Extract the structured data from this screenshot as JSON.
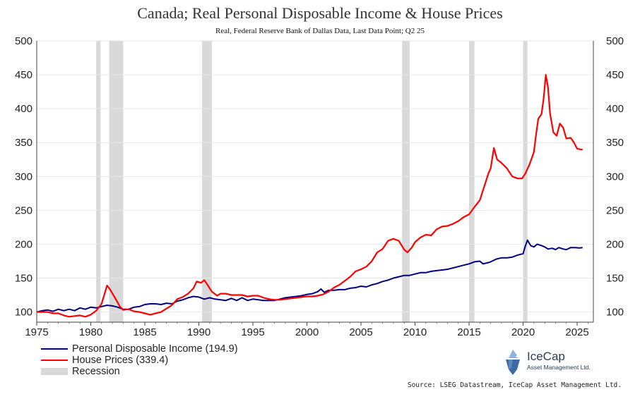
{
  "chart_data": {
    "type": "line",
    "title": "Canada; Real Personal Disposable Income & House Prices",
    "subtitle": "Real, Federal Reserve Bank of Dallas Data, Last Data Point; Q2 25",
    "xlim": [
      1975,
      2026.5
    ],
    "ylim": [
      85,
      500
    ],
    "y_ticks": [
      100,
      150,
      200,
      250,
      300,
      350,
      400,
      450,
      500
    ],
    "x_ticks": [
      1975,
      1980,
      1985,
      1990,
      1995,
      2000,
      2005,
      2010,
      2015,
      2020,
      2025
    ],
    "y_axis_both_sides": true,
    "grid": "horizontal",
    "legend_position": "bottom-left",
    "recessions": [
      [
        1980.5,
        1980.9
      ],
      [
        1981.7,
        1983.0
      ],
      [
        1990.3,
        1991.2
      ],
      [
        2008.8,
        2009.5
      ],
      [
        2015.0,
        2015.5
      ],
      [
        2020.0,
        2020.4
      ]
    ],
    "series": [
      {
        "name": "Personal Disposable Income (194.9)",
        "color": "#000080",
        "points": [
          [
            1975.0,
            100
          ],
          [
            1975.5,
            102
          ],
          [
            1976.0,
            103
          ],
          [
            1976.5,
            101
          ],
          [
            1977.0,
            104
          ],
          [
            1977.5,
            102
          ],
          [
            1978.0,
            104
          ],
          [
            1978.5,
            102
          ],
          [
            1979.0,
            106
          ],
          [
            1979.5,
            104
          ],
          [
            1980.0,
            107
          ],
          [
            1980.5,
            106
          ],
          [
            1981.0,
            108
          ],
          [
            1981.5,
            110
          ],
          [
            1982.0,
            109
          ],
          [
            1982.5,
            107
          ],
          [
            1983.0,
            104
          ],
          [
            1983.5,
            104
          ],
          [
            1984.0,
            107
          ],
          [
            1984.5,
            108
          ],
          [
            1985.0,
            111
          ],
          [
            1985.5,
            112
          ],
          [
            1986.0,
            112
          ],
          [
            1986.5,
            111
          ],
          [
            1987.0,
            113
          ],
          [
            1987.5,
            112
          ],
          [
            1988.0,
            116
          ],
          [
            1988.5,
            118
          ],
          [
            1989.0,
            121
          ],
          [
            1989.5,
            123
          ],
          [
            1990.0,
            122
          ],
          [
            1990.5,
            119
          ],
          [
            1991.0,
            121
          ],
          [
            1991.5,
            119
          ],
          [
            1992.0,
            118
          ],
          [
            1992.5,
            117
          ],
          [
            1993.0,
            120
          ],
          [
            1993.5,
            117
          ],
          [
            1994.0,
            121
          ],
          [
            1994.5,
            117
          ],
          [
            1995.0,
            119
          ],
          [
            1995.5,
            118
          ],
          [
            1996.0,
            117
          ],
          [
            1996.5,
            117
          ],
          [
            1997.0,
            117
          ],
          [
            1997.5,
            119
          ],
          [
            1998.0,
            121
          ],
          [
            1998.5,
            122
          ],
          [
            1999.0,
            123
          ],
          [
            1999.5,
            124
          ],
          [
            2000.0,
            126
          ],
          [
            2000.5,
            127
          ],
          [
            2001.0,
            130
          ],
          [
            2001.3,
            134
          ],
          [
            2001.6,
            129
          ],
          [
            2002.0,
            132
          ],
          [
            2002.5,
            132
          ],
          [
            2003.0,
            133
          ],
          [
            2003.5,
            133
          ],
          [
            2004.0,
            135
          ],
          [
            2004.5,
            136
          ],
          [
            2005.0,
            138
          ],
          [
            2005.5,
            137
          ],
          [
            2006.0,
            140
          ],
          [
            2006.5,
            142
          ],
          [
            2007.0,
            145
          ],
          [
            2007.5,
            147
          ],
          [
            2008.0,
            150
          ],
          [
            2008.5,
            152
          ],
          [
            2009.0,
            154
          ],
          [
            2009.5,
            154
          ],
          [
            2010.0,
            156
          ],
          [
            2010.5,
            158
          ],
          [
            2011.0,
            158
          ],
          [
            2011.5,
            160
          ],
          [
            2012.0,
            161
          ],
          [
            2012.5,
            162
          ],
          [
            2013.0,
            163
          ],
          [
            2013.5,
            165
          ],
          [
            2014.0,
            167
          ],
          [
            2014.5,
            169
          ],
          [
            2015.0,
            171
          ],
          [
            2015.5,
            174
          ],
          [
            2016.0,
            175
          ],
          [
            2016.3,
            171
          ],
          [
            2016.8,
            173
          ],
          [
            2017.0,
            174
          ],
          [
            2017.5,
            178
          ],
          [
            2018.0,
            180
          ],
          [
            2018.5,
            180
          ],
          [
            2019.0,
            181
          ],
          [
            2019.5,
            184
          ],
          [
            2020.0,
            186
          ],
          [
            2020.2,
            197
          ],
          [
            2020.4,
            206
          ],
          [
            2020.7,
            198
          ],
          [
            2021.0,
            196
          ],
          [
            2021.3,
            200
          ],
          [
            2021.7,
            198
          ],
          [
            2022.0,
            196
          ],
          [
            2022.3,
            193
          ],
          [
            2022.7,
            194
          ],
          [
            2023.0,
            192
          ],
          [
            2023.3,
            195
          ],
          [
            2023.7,
            193
          ],
          [
            2024.0,
            192
          ],
          [
            2024.4,
            195
          ],
          [
            2024.8,
            195
          ],
          [
            2025.2,
            194.5
          ],
          [
            2025.5,
            194.9
          ]
        ]
      },
      {
        "name": "House Prices (339.4)",
        "color": "#ff0000",
        "points": [
          [
            1975.0,
            100
          ],
          [
            1975.5,
            100
          ],
          [
            1976.0,
            100
          ],
          [
            1976.5,
            98
          ],
          [
            1977.0,
            98
          ],
          [
            1977.5,
            95
          ],
          [
            1978.0,
            93
          ],
          [
            1978.5,
            94
          ],
          [
            1979.0,
            95
          ],
          [
            1979.5,
            93
          ],
          [
            1980.0,
            96
          ],
          [
            1980.5,
            102
          ],
          [
            1981.0,
            112
          ],
          [
            1981.3,
            128
          ],
          [
            1981.5,
            139
          ],
          [
            1981.8,
            133
          ],
          [
            1982.2,
            122
          ],
          [
            1982.7,
            108
          ],
          [
            1983.0,
            103
          ],
          [
            1983.5,
            104
          ],
          [
            1984.0,
            101
          ],
          [
            1984.5,
            100
          ],
          [
            1985.0,
            98
          ],
          [
            1985.5,
            96
          ],
          [
            1986.0,
            98
          ],
          [
            1986.5,
            100
          ],
          [
            1987.0,
            105
          ],
          [
            1987.5,
            110
          ],
          [
            1988.0,
            119
          ],
          [
            1988.5,
            122
          ],
          [
            1989.0,
            127
          ],
          [
            1989.5,
            135
          ],
          [
            1989.8,
            145
          ],
          [
            1990.2,
            143
          ],
          [
            1990.5,
            147
          ],
          [
            1990.8,
            140
          ],
          [
            1991.2,
            130
          ],
          [
            1991.7,
            124
          ],
          [
            1992.0,
            127
          ],
          [
            1992.5,
            127
          ],
          [
            1993.0,
            125
          ],
          [
            1993.5,
            125
          ],
          [
            1994.0,
            125
          ],
          [
            1994.5,
            123
          ],
          [
            1995.0,
            124
          ],
          [
            1995.5,
            124
          ],
          [
            1996.0,
            121
          ],
          [
            1996.5,
            119
          ],
          [
            1997.0,
            118
          ],
          [
            1997.5,
            118
          ],
          [
            1998.0,
            119
          ],
          [
            1998.5,
            120
          ],
          [
            1999.0,
            121
          ],
          [
            1999.5,
            122
          ],
          [
            2000.0,
            123
          ],
          [
            2000.5,
            123
          ],
          [
            2001.0,
            124
          ],
          [
            2001.5,
            126
          ],
          [
            2002.0,
            130
          ],
          [
            2002.5,
            136
          ],
          [
            2003.0,
            140
          ],
          [
            2003.5,
            146
          ],
          [
            2004.0,
            152
          ],
          [
            2004.5,
            160
          ],
          [
            2005.0,
            163
          ],
          [
            2005.5,
            167
          ],
          [
            2006.0,
            175
          ],
          [
            2006.5,
            188
          ],
          [
            2007.0,
            193
          ],
          [
            2007.5,
            205
          ],
          [
            2008.0,
            208
          ],
          [
            2008.5,
            205
          ],
          [
            2009.0,
            192
          ],
          [
            2009.3,
            188
          ],
          [
            2009.7,
            195
          ],
          [
            2010.0,
            203
          ],
          [
            2010.5,
            210
          ],
          [
            2011.0,
            214
          ],
          [
            2011.5,
            213
          ],
          [
            2012.0,
            222
          ],
          [
            2012.5,
            226
          ],
          [
            2013.0,
            227
          ],
          [
            2013.5,
            230
          ],
          [
            2014.0,
            234
          ],
          [
            2014.5,
            240
          ],
          [
            2015.0,
            244
          ],
          [
            2015.5,
            255
          ],
          [
            2016.0,
            265
          ],
          [
            2016.5,
            290
          ],
          [
            2016.8,
            305
          ],
          [
            2017.0,
            312
          ],
          [
            2017.3,
            342
          ],
          [
            2017.6,
            325
          ],
          [
            2018.0,
            320
          ],
          [
            2018.5,
            312
          ],
          [
            2019.0,
            300
          ],
          [
            2019.5,
            297
          ],
          [
            2019.9,
            297
          ],
          [
            2020.2,
            304
          ],
          [
            2020.6,
            318
          ],
          [
            2021.0,
            336
          ],
          [
            2021.2,
            362
          ],
          [
            2021.4,
            385
          ],
          [
            2021.7,
            392
          ],
          [
            2021.9,
            415
          ],
          [
            2022.1,
            450
          ],
          [
            2022.3,
            432
          ],
          [
            2022.5,
            392
          ],
          [
            2022.8,
            365
          ],
          [
            2023.1,
            360
          ],
          [
            2023.4,
            378
          ],
          [
            2023.7,
            372
          ],
          [
            2024.0,
            356
          ],
          [
            2024.4,
            357
          ],
          [
            2024.7,
            350
          ],
          [
            2025.0,
            341
          ],
          [
            2025.5,
            339.4
          ]
        ]
      }
    ]
  },
  "legend": {
    "income_label": "Personal Disposable Income (194.9)",
    "house_label": "House Prices (339.4)",
    "recession_label": "Recession"
  },
  "colors": {
    "income": "#000080",
    "house": "#ff0000",
    "recession": "#d9d9d9",
    "grid": "#e6e6e6",
    "axis": "#444444"
  },
  "logo": {
    "name": "IceCap",
    "sub": "Asset Management Ltd."
  },
  "source": "Source: LSEG Datastream, IceCap Asset Management Ltd."
}
